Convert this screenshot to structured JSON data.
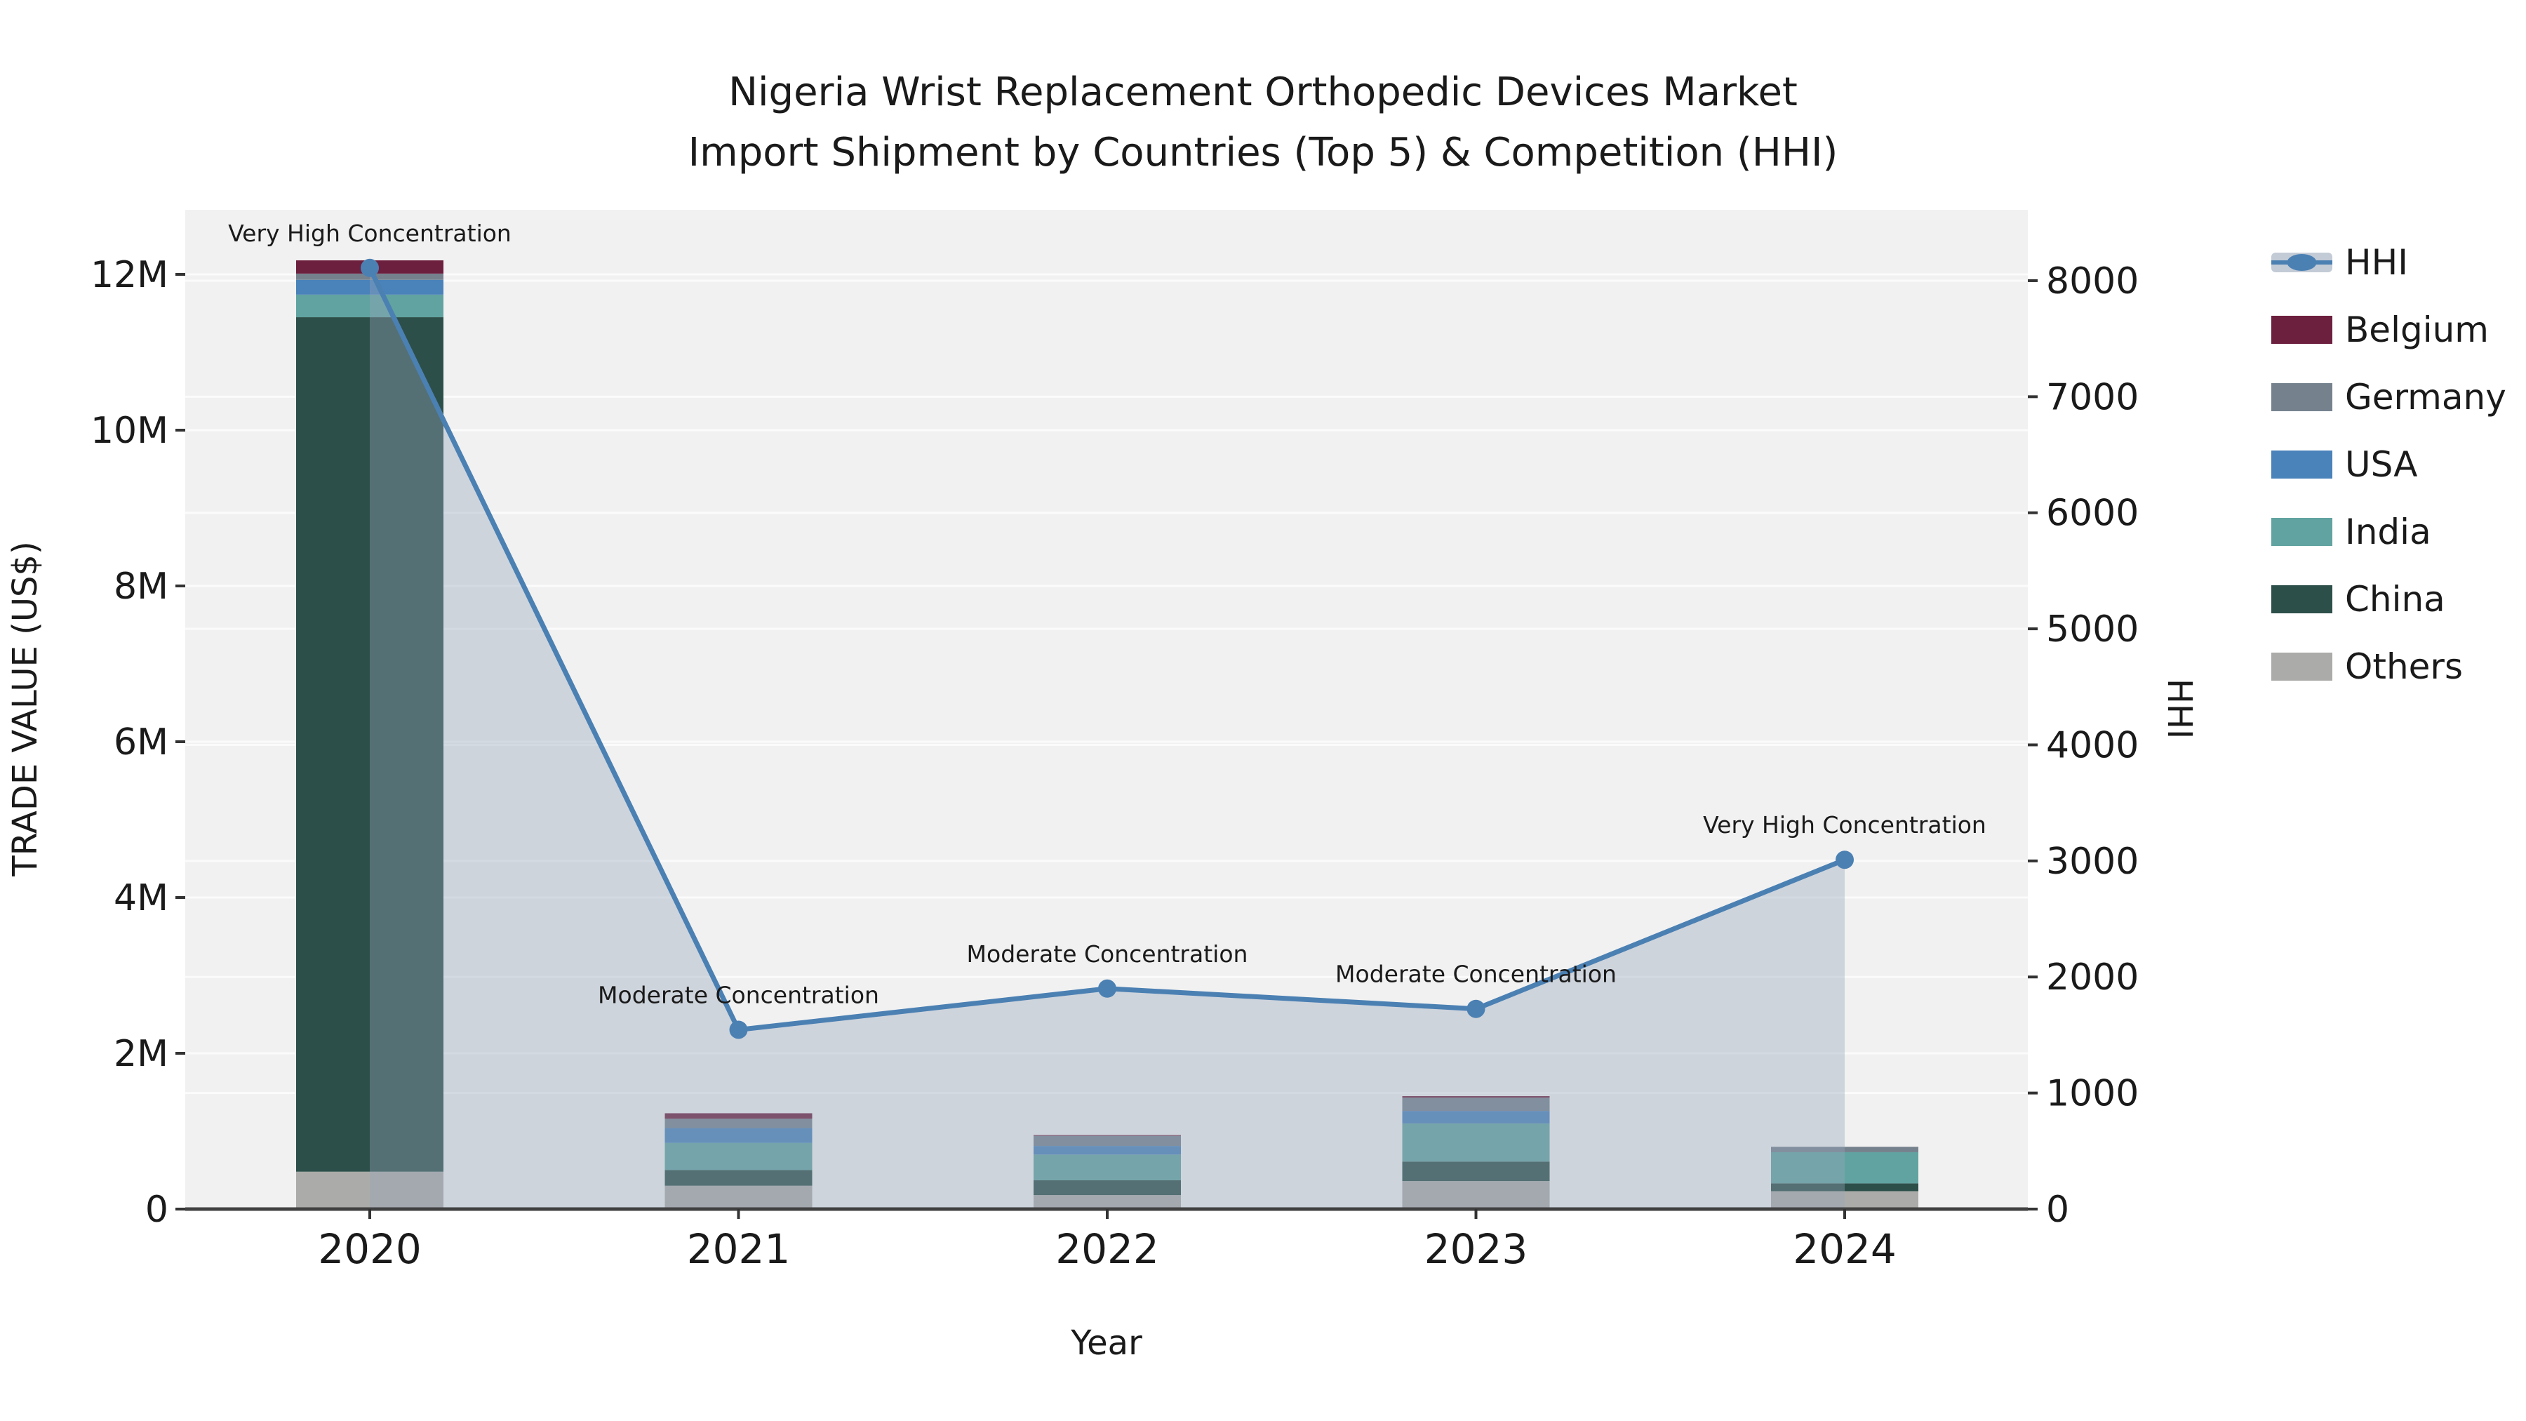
{
  "title": {
    "line1": "Nigeria Wrist Replacement Orthopedic Devices Market",
    "line2": "Import Shipment by Countries (Top 5) & Competition (HHI)"
  },
  "chart_data": {
    "type": "bar+line",
    "categories": [
      "2020",
      "2021",
      "2022",
      "2023",
      "2024"
    ],
    "bar_unit": "million US$",
    "bar_series": [
      {
        "name": "Others",
        "color": "#abaca9",
        "values": [
          0.48,
          0.3,
          0.18,
          0.36,
          0.23
        ]
      },
      {
        "name": "China",
        "color": "#2d4f4a",
        "values": [
          10.97,
          0.2,
          0.19,
          0.25,
          0.1
        ]
      },
      {
        "name": "India",
        "color": "#61a3a0",
        "values": [
          0.29,
          0.35,
          0.33,
          0.49,
          0.4
        ]
      },
      {
        "name": "USA",
        "color": "#4a82ba",
        "values": [
          0.19,
          0.19,
          0.11,
          0.16,
          0.0
        ]
      },
      {
        "name": "Germany",
        "color": "#75828e",
        "values": [
          0.08,
          0.12,
          0.13,
          0.17,
          0.07
        ]
      },
      {
        "name": "Belgium",
        "color": "#6d1f3e",
        "values": [
          0.17,
          0.07,
          0.01,
          0.02,
          0.0
        ]
      }
    ],
    "line_series": {
      "name": "HHI",
      "color": "#4b80b3",
      "area_fill": "rgba(151,166,186,0.38)",
      "values": [
        8110,
        1545,
        1900,
        1725,
        3010
      ]
    },
    "annotations": [
      "Very High Concentration",
      "Moderate Concentration",
      "Moderate Concentration",
      "Moderate Concentration",
      "Very High Concentration"
    ],
    "left_axis": {
      "label": "TRADE VALUE (US$)",
      "ticks": [
        "0",
        "2M",
        "4M",
        "6M",
        "8M",
        "10M",
        "12M"
      ],
      "tick_values": [
        0,
        2,
        4,
        6,
        8,
        10,
        12
      ]
    },
    "right_axis": {
      "label": "HHI",
      "ticks": [
        "0",
        "1000",
        "2000",
        "3000",
        "4000",
        "5000",
        "6000",
        "7000",
        "8000"
      ],
      "tick_values": [
        0,
        1000,
        2000,
        3000,
        4000,
        5000,
        6000,
        7000,
        8000
      ]
    },
    "x_axis": {
      "label": "Year"
    },
    "legend_position": "top-right",
    "grid": true
  },
  "legend": {
    "items": [
      {
        "label": "HHI",
        "type": "line"
      },
      {
        "label": "Belgium",
        "type": "swatch",
        "color": "#6d1f3e"
      },
      {
        "label": "Germany",
        "type": "swatch",
        "color": "#75828e"
      },
      {
        "label": "USA",
        "type": "swatch",
        "color": "#4a82ba"
      },
      {
        "label": "India",
        "type": "swatch",
        "color": "#61a3a0"
      },
      {
        "label": "China",
        "type": "swatch",
        "color": "#2d4f4a"
      },
      {
        "label": "Others",
        "type": "swatch",
        "color": "#abaca9"
      }
    ]
  },
  "colors": {
    "plot_background": "#f1f1f1",
    "gridline": "#fbfbfb",
    "axis_line": "#404040",
    "text": "#1a1a1a",
    "hhi_line": "#4b80b3",
    "hhi_area": "rgba(151,166,186,0.38)",
    "hhi_legend_band": "#c3cbd6"
  }
}
